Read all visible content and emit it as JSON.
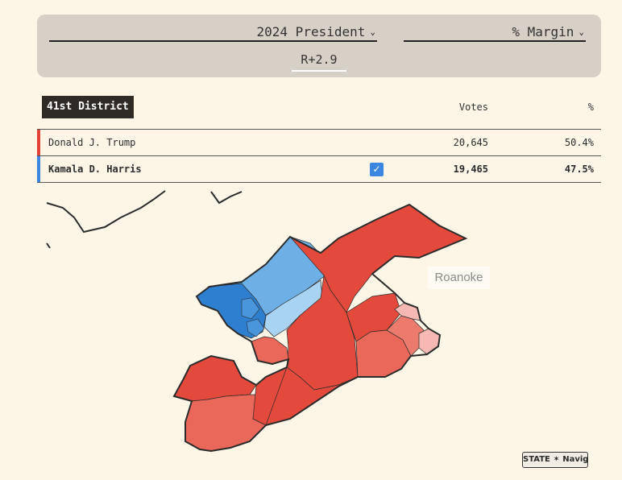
{
  "controls": {
    "race_select": "2024 President",
    "metric_select": "% Margin",
    "margin": "R+2.9"
  },
  "table": {
    "district": "41st District",
    "columns": {
      "votes": "Votes",
      "pct": "%"
    },
    "rows": [
      {
        "name": "Donald J. Trump",
        "votes": "20,645",
        "pct": "50.4%",
        "color": "#e2423a",
        "winner": false
      },
      {
        "name": "Kamala D. Harris",
        "votes": "19,465",
        "pct": "47.5%",
        "color": "#3a86e0",
        "winner": true
      }
    ]
  },
  "map": {
    "city_label": "Roanoke",
    "colors": {
      "strong_r": "#e34a3c",
      "medium_r": "#e9685a",
      "light_r": "#f5b8b2",
      "strong_d": "#2f7fd0",
      "medium_d": "#6eb0e6",
      "light_d": "#a9d3f2",
      "outline": "#2b2b2b"
    }
  },
  "logo": {
    "text": "STATE ✶ Navigator"
  }
}
